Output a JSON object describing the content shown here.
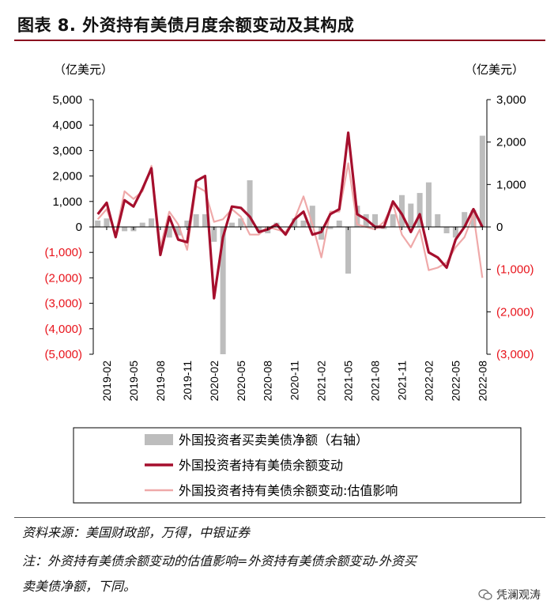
{
  "title": "图表 8. 外资持有美债月度余额变动及其构成",
  "source_line": "资料来源：美国财政部，万得，中银证券",
  "note_line1": "注：外资持有美债余额变动的估值影响=外资持有美债余额变动-外资买",
  "note_line2": "卖美债净额，下同。",
  "watermark": "凭澜观涛",
  "colors": {
    "bar": "#bdbdbd",
    "line": "#a50f2d",
    "line_light": "#efa9a9",
    "neg_tick": "#e8131b",
    "rule": "#8b0c1f"
  },
  "chart_data": {
    "type": "bar+line",
    "x_tick_labels": [
      "2019-02",
      "2019-05",
      "2019-08",
      "2019-11",
      "2020-02",
      "2020-05",
      "2020-08",
      "2020-11",
      "2021-02",
      "2021-05",
      "2021-08",
      "2021-11",
      "2022-02",
      "2022-05",
      "2022-08"
    ],
    "left_axis": {
      "unit": "（亿美元）",
      "ylim": [
        -5000,
        5000
      ],
      "ticks": [
        "5,000",
        "4,000",
        "3,000",
        "2,000",
        "1,000",
        "0",
        "(1,000)",
        "(2,000)",
        "(3,000)",
        "(4,000)",
        "(5,000)"
      ]
    },
    "right_axis": {
      "unit": "（亿美元）",
      "ylim": [
        -3000,
        3000
      ],
      "ticks": [
        "3,000",
        "2,000",
        "1,000",
        "0",
        "(1,000)",
        "(2,000)",
        "(3,000)"
      ]
    },
    "x": [
      "2019-01",
      "2019-02",
      "2019-03",
      "2019-04",
      "2019-05",
      "2019-06",
      "2019-07",
      "2019-08",
      "2019-09",
      "2019-10",
      "2019-11",
      "2019-12",
      "2020-01",
      "2020-02",
      "2020-03",
      "2020-04",
      "2020-05",
      "2020-06",
      "2020-07",
      "2020-08",
      "2020-09",
      "2020-10",
      "2020-11",
      "2020-12",
      "2021-01",
      "2021-02",
      "2021-03",
      "2021-04",
      "2021-05",
      "2021-06",
      "2021-07",
      "2021-08",
      "2021-09",
      "2021-10",
      "2021-11",
      "2021-12",
      "2022-01",
      "2022-02",
      "2022-03",
      "2022-04",
      "2022-05",
      "2022-06",
      "2022-07",
      "2022-08"
    ],
    "series": [
      {
        "name": "外国投资者买卖美债净额（右轴）",
        "type": "bar",
        "axis": "right",
        "values": [
          150,
          200,
          0,
          -100,
          -100,
          100,
          200,
          0,
          -250,
          -200,
          150,
          300,
          300,
          -350,
          -3000,
          100,
          200,
          1100,
          -100,
          -150,
          100,
          0,
          200,
          150,
          500,
          -300,
          -50,
          150,
          -1100,
          500,
          300,
          300,
          -50,
          300,
          750,
          550,
          800,
          1050,
          300,
          -150,
          -250,
          350,
          400,
          2150
        ]
      },
      {
        "name": "外国投资者持有美债余额变动",
        "type": "line",
        "axis": "left",
        "values": [
          500,
          950,
          -400,
          1050,
          800,
          1500,
          2300,
          -1100,
          400,
          -500,
          -600,
          1800,
          2000,
          -2800,
          -400,
          800,
          750,
          400,
          -200,
          -100,
          100,
          -300,
          300,
          600,
          -300,
          -200,
          500,
          700,
          3700,
          500,
          300,
          0,
          0,
          1000,
          500,
          -200,
          500,
          -1000,
          -1200,
          -1600,
          -500,
          0,
          700,
          0
        ]
      },
      {
        "name": "外国投资者持有美债余额变动:估值影响",
        "type": "line",
        "axis": "left",
        "values": [
          300,
          700,
          -300,
          1400,
          1100,
          1400,
          2400,
          -800,
          600,
          100,
          -900,
          1600,
          1400,
          200,
          300,
          700,
          400,
          -300,
          -300,
          0,
          -100,
          -200,
          300,
          1200,
          100,
          -1200,
          600,
          600,
          2500,
          100,
          0,
          -100,
          200,
          900,
          -300,
          -800,
          -100,
          -1700,
          -1600,
          -1400,
          -800,
          -400,
          500,
          -2000
        ]
      }
    ]
  }
}
